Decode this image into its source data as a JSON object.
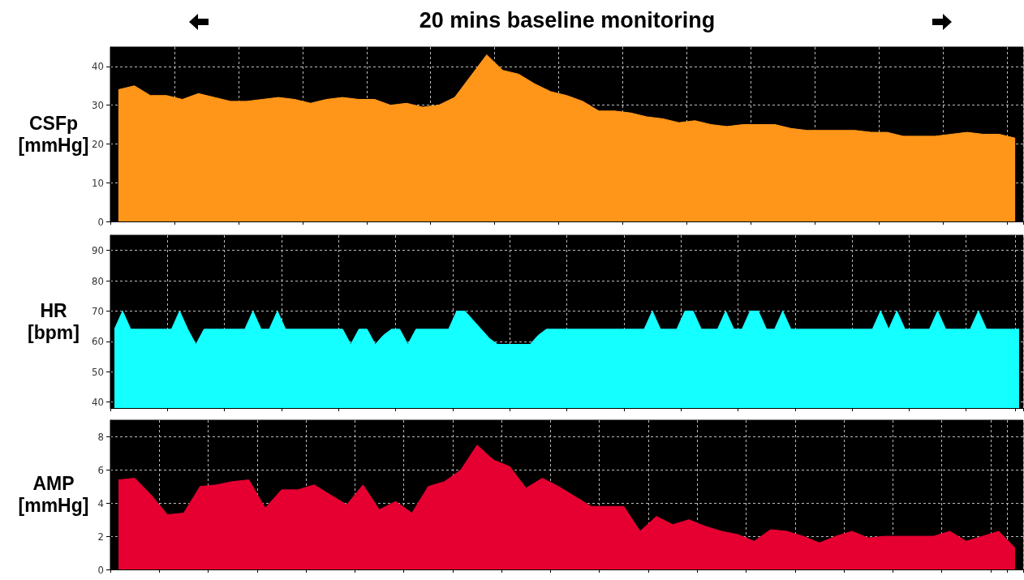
{
  "chart_data": [
    {
      "type": "area",
      "title": "20 mins baseline monitoring",
      "ylabel": "CSFp [mmHg]",
      "categories": [
        null,
        null,
        null,
        null,
        null,
        null,
        null,
        null,
        null,
        null,
        null,
        null,
        null,
        null,
        null,
        null,
        null,
        null,
        null,
        null,
        null,
        null,
        null,
        null,
        null,
        null,
        null,
        null,
        null,
        null,
        null,
        null,
        null,
        null,
        null,
        null,
        null,
        null,
        null,
        null,
        null,
        null,
        null,
        null,
        null,
        null,
        null,
        null,
        null,
        null,
        null,
        null,
        null,
        null,
        null,
        null,
        null
      ],
      "series": [
        {
          "color": "#ff9619",
          "values": [
            34,
            35,
            32.5,
            32.5,
            31.5,
            33,
            32,
            31,
            31,
            31.5,
            32,
            31.5,
            30.5,
            31.5,
            32,
            31.5,
            31.5,
            30,
            30.5,
            29.5,
            30,
            32,
            37.5,
            43,
            39,
            38,
            35.5,
            33.5,
            32.5,
            31,
            28.5,
            28.5,
            28,
            27,
            26.5,
            25.5,
            26,
            25,
            24.5,
            25,
            25,
            25,
            24,
            23.5,
            23.5,
            23.5,
            23.5,
            23,
            23,
            22,
            22,
            22,
            22.5,
            23,
            22.5,
            22.5,
            21.5
          ]
        }
      ],
      "ylim": [
        0,
        45
      ],
      "yticks": [
        0,
        10,
        20,
        30,
        40
      ],
      "grid": true
    },
    {
      "type": "area",
      "ylabel": "HR [bpm]",
      "categories": [
        null,
        null,
        null,
        null,
        null,
        null,
        null,
        null,
        null,
        null,
        null,
        null,
        null,
        null,
        null,
        null,
        null,
        null,
        null,
        null,
        null,
        null,
        null,
        null,
        null,
        null,
        null,
        null,
        null,
        null,
        null,
        null,
        null,
        null,
        null,
        null,
        null,
        null,
        null,
        null,
        null,
        null,
        null,
        null,
        null,
        null,
        null,
        null,
        null,
        null,
        null,
        null,
        null,
        null,
        null,
        null,
        null,
        null,
        null,
        null,
        null,
        null,
        null,
        null,
        null,
        null,
        null,
        null,
        null,
        null,
        null,
        null,
        null,
        null,
        null,
        null,
        null,
        null,
        null,
        null,
        null,
        null,
        null,
        null,
        null,
        null,
        null,
        null,
        null,
        null,
        null,
        null,
        null,
        null,
        null,
        null,
        null,
        null,
        null,
        null,
        null,
        null,
        null,
        null,
        null,
        null,
        null,
        null,
        null,
        null,
        null,
        null
      ],
      "series": [
        {
          "color": "#14ffff",
          "values": [
            64,
            70,
            64,
            64,
            64,
            64,
            64,
            64,
            70,
            64,
            59,
            64,
            64,
            64,
            64,
            64,
            64,
            70,
            64,
            64,
            70,
            64,
            64,
            64,
            64,
            64,
            64,
            64,
            64,
            59,
            64,
            64,
            59,
            62,
            64,
            64,
            59,
            64,
            64,
            64,
            64,
            64,
            70,
            70,
            67,
            64,
            61,
            59,
            59,
            59,
            59,
            59,
            62,
            64,
            64,
            64,
            64,
            64,
            64,
            64,
            64,
            64,
            64,
            64,
            64,
            64,
            70,
            64,
            64,
            64,
            70,
            70,
            64,
            64,
            64,
            70,
            64,
            64,
            70,
            70,
            64,
            64,
            70,
            64,
            64,
            64,
            64,
            64,
            64,
            64,
            64,
            64,
            64,
            64,
            70,
            64,
            70,
            64,
            64,
            64,
            64,
            70,
            64,
            64,
            64,
            64,
            70,
            64,
            64,
            64,
            64,
            64
          ]
        }
      ],
      "ylim": [
        38,
        95
      ],
      "yticks": [
        40,
        50,
        60,
        70,
        80,
        90
      ],
      "grid": true
    },
    {
      "type": "area",
      "ylabel": "AMP [mmHg]",
      "categories": [
        null,
        null,
        null,
        null,
        null,
        null,
        null,
        null,
        null,
        null,
        null,
        null,
        null,
        null,
        null,
        null,
        null,
        null,
        null,
        null,
        null,
        null,
        null,
        null,
        null,
        null,
        null,
        null,
        null,
        null,
        null,
        null,
        null,
        null,
        null,
        null,
        null,
        null,
        null,
        null,
        null,
        null,
        null,
        null,
        null,
        null,
        null,
        null,
        null,
        null,
        null,
        null,
        null,
        null,
        null,
        null
      ],
      "series": [
        {
          "color": "#e60032",
          "values": [
            5.4,
            5.5,
            4.5,
            3.3,
            3.4,
            5,
            5.1,
            5.3,
            5.4,
            3.7,
            4.8,
            4.8,
            5.1,
            4.5,
            3.9,
            5.1,
            3.6,
            4.1,
            3.4,
            5,
            5.3,
            6,
            7.5,
            6.6,
            6.2,
            4.9,
            5.5,
            5,
            4.4,
            3.8,
            3.8,
            3.8,
            2.3,
            3.2,
            2.7,
            3,
            2.6,
            2.3,
            2.1,
            1.7,
            2.4,
            2.3,
            2,
            1.6,
            2,
            2.3,
            1.9,
            2,
            2,
            2,
            2,
            2.3,
            1.7,
            2,
            2.3,
            1.3
          ]
        }
      ],
      "ylim": [
        0,
        9
      ],
      "yticks": [
        0,
        2,
        4,
        6,
        8
      ],
      "grid": true
    }
  ]
}
